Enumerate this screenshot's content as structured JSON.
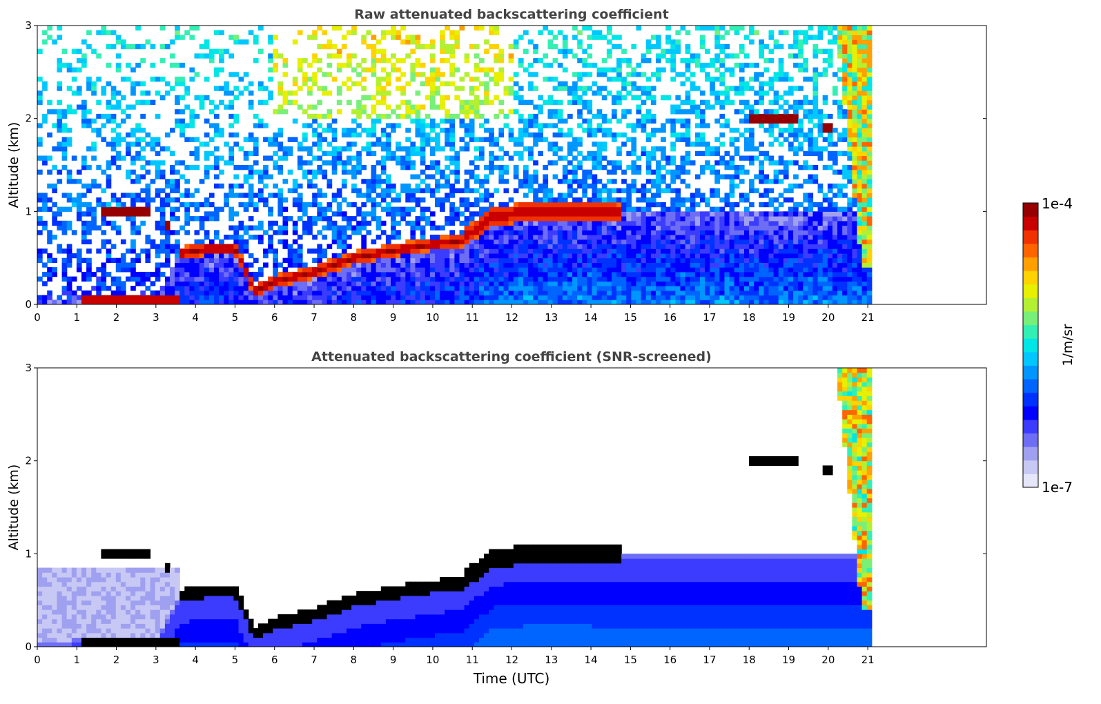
{
  "figure": {
    "xlabel": "Time (UTC)",
    "colorbar": {
      "label": "1/m/sr",
      "top_label": "1e-4",
      "bottom_label": "1e-7",
      "scale": "log",
      "range": [
        1e-07,
        0.0001
      ],
      "colors": [
        "#e6e6fa",
        "#c8c8f5",
        "#a0a0f0",
        "#6e6ef5",
        "#3c3cff",
        "#0000ff",
        "#0032ff",
        "#0064ff",
        "#0096ff",
        "#00c8ff",
        "#00e6e6",
        "#32f0b4",
        "#78f078",
        "#b4f032",
        "#e6f000",
        "#ffd200",
        "#ffa000",
        "#ff6400",
        "#f03200",
        "#c80000",
        "#960000"
      ]
    }
  },
  "chart_data": [
    {
      "type": "heatmap",
      "title": "Raw attenuated backscattering coefficient",
      "xlabel": "",
      "ylabel": "Altitude (km)",
      "xlim": [
        0,
        24
      ],
      "ylim": [
        0,
        3
      ],
      "x_ticks": [
        "0",
        "1",
        "2",
        "3",
        "4",
        "5",
        "6",
        "7",
        "8",
        "9",
        "10",
        "11",
        "12",
        "13",
        "14",
        "15",
        "16",
        "17",
        "18",
        "19",
        "20",
        "21"
      ],
      "y_ticks": [
        "0",
        "1",
        "2",
        "3"
      ],
      "data_end_time": 21.1,
      "layer_top_km": {
        "time": [
          0,
          1,
          2,
          3,
          3.6,
          4.3,
          5,
          5.5,
          6,
          7,
          8,
          9,
          10,
          10.7,
          11.5,
          12.5,
          13.5,
          14.8
        ],
        "altitude": [
          0.05,
          0.08,
          0.08,
          0.08,
          0.55,
          0.6,
          0.6,
          0.15,
          0.25,
          0.35,
          0.5,
          0.58,
          0.65,
          0.68,
          0.95,
          1.0,
          1.0,
          0.98
        ]
      },
      "elevated_layers": [
        {
          "t0": 1.6,
          "t1": 2.8,
          "altitude": 0.98
        },
        {
          "t0": 3.2,
          "t1": 3.4,
          "altitude": 0.85
        },
        {
          "t0": 18.0,
          "t1": 19.2,
          "altitude": 2.0
        },
        {
          "t0": 19.8,
          "t1": 20.1,
          "altitude": 1.9
        }
      ]
    },
    {
      "type": "heatmap",
      "title": "Attenuated backscattering coefficient (SNR-screened)",
      "xlabel": "Time (UTC)",
      "ylabel": "Altitude (km)",
      "xlim": [
        0,
        24
      ],
      "ylim": [
        0,
        3
      ],
      "x_ticks": [
        "0",
        "1",
        "2",
        "3",
        "4",
        "5",
        "6",
        "7",
        "8",
        "9",
        "10",
        "11",
        "12",
        "13",
        "14",
        "15",
        "16",
        "17",
        "18",
        "19",
        "20",
        "21"
      ],
      "y_ticks": [
        "0",
        "1",
        "2",
        "3"
      ],
      "data_end_time": 21.1,
      "screened": true
    }
  ]
}
